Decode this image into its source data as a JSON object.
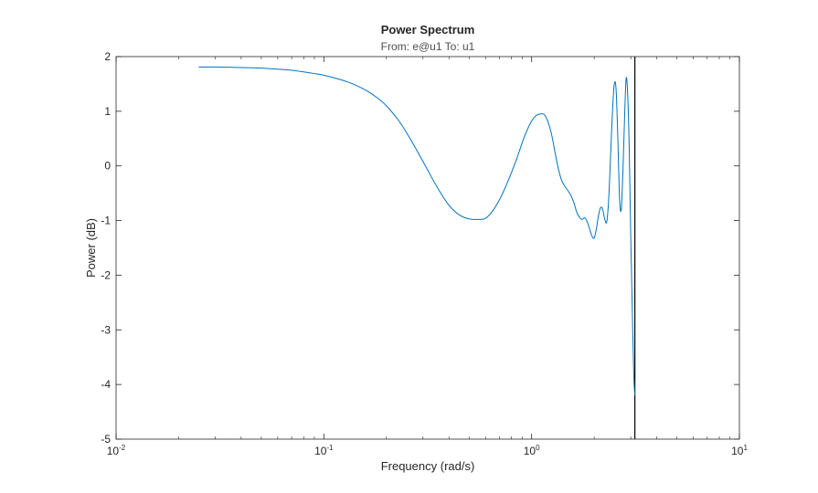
{
  "chart_data": {
    "type": "line",
    "title": "Power Spectrum",
    "subtitle": "From: e@u1  To: u1",
    "xlabel": "Frequency  (rad/s)",
    "ylabel": "Power (dB)",
    "xscale": "log",
    "xlim": [
      0.01,
      10
    ],
    "ylim": [
      -5,
      2
    ],
    "grid": false,
    "legend": "none",
    "x_ticks": [
      {
        "value": 0.01,
        "base": "10",
        "exp": "-2"
      },
      {
        "value": 0.1,
        "base": "10",
        "exp": "-1"
      },
      {
        "value": 1,
        "base": "10",
        "exp": "0"
      },
      {
        "value": 10,
        "base": "10",
        "exp": "1"
      }
    ],
    "y_ticks": [
      {
        "value": 2,
        "label": "2"
      },
      {
        "value": 1,
        "label": "1"
      },
      {
        "value": 0,
        "label": "0"
      },
      {
        "value": -1,
        "label": "-1"
      },
      {
        "value": -2,
        "label": "-2"
      },
      {
        "value": -3,
        "label": "-3"
      },
      {
        "value": -4,
        "label": "-4"
      },
      {
        "value": -5,
        "label": "-5"
      }
    ],
    "series": [
      {
        "color": "#0072bd",
        "x": [
          0.025,
          0.03,
          0.04,
          0.05,
          0.06,
          0.07,
          0.08,
          0.09,
          0.1,
          0.12,
          0.14,
          0.16,
          0.18,
          0.2,
          0.23,
          0.26,
          0.3,
          0.35,
          0.4,
          0.45,
          0.5,
          0.55,
          0.6,
          0.65,
          0.7,
          0.75,
          0.8,
          0.85,
          0.9,
          0.95,
          1.0,
          1.05,
          1.1,
          1.15,
          1.2,
          1.25,
          1.3,
          1.35,
          1.4,
          1.45,
          1.5,
          1.55,
          1.6,
          1.65,
          1.7,
          1.75,
          1.8,
          1.85,
          1.9,
          1.95,
          2.0,
          2.05,
          2.1,
          2.15,
          2.2,
          2.25,
          2.3,
          2.35,
          2.4,
          2.45,
          2.5,
          2.55,
          2.6,
          2.65,
          2.7,
          2.75,
          2.8,
          2.85,
          2.9,
          2.95,
          3.0,
          3.05,
          3.1,
          3.14
        ],
        "y": [
          1.81,
          1.81,
          1.8,
          1.79,
          1.77,
          1.75,
          1.72,
          1.69,
          1.66,
          1.58,
          1.49,
          1.38,
          1.25,
          1.1,
          0.82,
          0.5,
          0.08,
          -0.38,
          -0.72,
          -0.9,
          -0.97,
          -0.98,
          -0.96,
          -0.82,
          -0.62,
          -0.38,
          -0.12,
          0.14,
          0.42,
          0.65,
          0.82,
          0.92,
          0.95,
          0.94,
          0.8,
          0.56,
          0.22,
          -0.08,
          -0.28,
          -0.38,
          -0.46,
          -0.55,
          -0.68,
          -0.85,
          -0.94,
          -0.98,
          -0.95,
          -1.02,
          -1.15,
          -1.28,
          -1.32,
          -1.15,
          -0.9,
          -0.76,
          -0.8,
          -0.98,
          -1.02,
          -0.6,
          0.2,
          1.0,
          1.5,
          1.4,
          0.5,
          -0.6,
          -0.8,
          -0.1,
          0.85,
          1.6,
          1.3,
          0.3,
          -1.3,
          -2.6,
          -3.8,
          -4.2
        ]
      }
    ],
    "vertical_line": {
      "x": 3.14,
      "color": "#000000"
    }
  }
}
